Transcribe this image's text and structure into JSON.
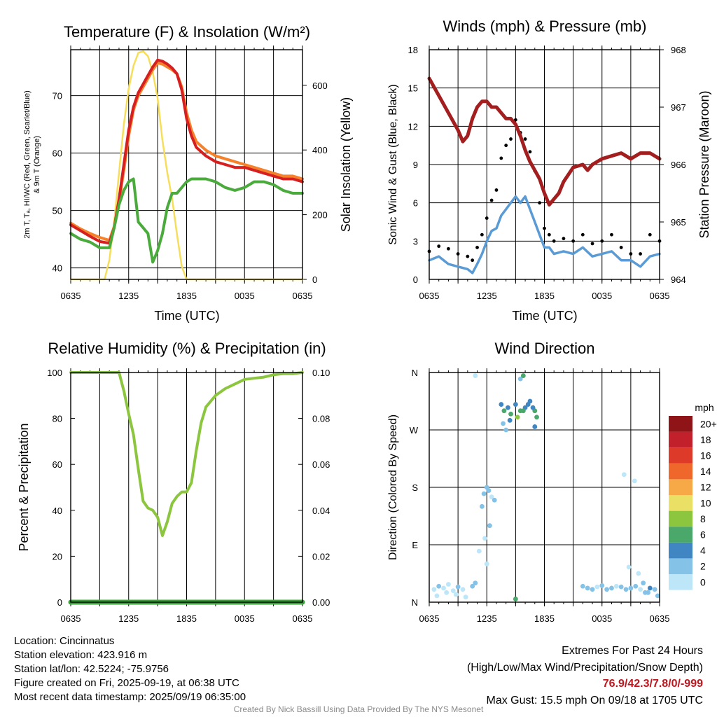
{
  "charts": {
    "temperature": {
      "title": "Temperature (F) & Insolation (W/m²)",
      "ylabel_left_lines": [
        "2m T, Tₐ, HI/WC (Red, Green, Scarlet/Blue)",
        "& 9m T (Orange)"
      ],
      "ylabel_right": "Solar Insolation (Yellow)",
      "xlabel": "Time (UTC)"
    },
    "winds": {
      "title": "Winds (mph) & Pressure (mb)",
      "ylabel_left": "Sonic Wind & Gust (Blue, Black)",
      "ylabel_right": "Station Pressure (Maroon)",
      "xlabel": "Time (UTC)"
    },
    "humidity": {
      "title": "Relative Humidity (%) & Precipitation (in)",
      "ylabel_left": "Percent & Precipitation"
    },
    "direction": {
      "title": "Wind Direction",
      "ylabel_left": "Direction (Colored By Speed)",
      "colorbar_title": "mph"
    }
  },
  "chart_data": [
    {
      "type": "line",
      "title": "Temperature (F) & Insolation (W/m2)",
      "xlabel": "Time (UTC)",
      "xticks": [
        "0635",
        "1235",
        "1835",
        "0035",
        "0635"
      ],
      "xlim_hours": [
        0,
        24
      ],
      "ylim_left": [
        38,
        78
      ],
      "yticks_left": [
        40,
        50,
        60,
        70
      ],
      "ylim_right": [
        0,
        710
      ],
      "yticks_right": [
        0,
        200,
        400,
        600
      ],
      "series": [
        {
          "name": "2m T",
          "color": "#d62020",
          "axis": "left",
          "x": [
            0,
            1,
            2,
            3,
            4,
            4.5,
            5,
            5.5,
            6,
            6.5,
            7,
            7.5,
            8,
            8.5,
            9,
            9.5,
            10,
            10.5,
            11,
            11.5,
            12,
            12.5,
            13,
            14,
            15,
            16,
            17,
            18,
            19,
            20,
            21,
            22,
            23,
            24
          ],
          "y": [
            47.5,
            46.5,
            45.5,
            44.6,
            44.3,
            47,
            52,
            58,
            64,
            68,
            70.5,
            72,
            73.5,
            75,
            76.2,
            76,
            75.5,
            74.8,
            73.8,
            71,
            66,
            63,
            61,
            59.5,
            58.5,
            58,
            57.5,
            57.5,
            57,
            56.5,
            56,
            55.5,
            55.5,
            55
          ]
        },
        {
          "name": "9m T",
          "color": "#f5822a",
          "axis": "left",
          "x": [
            0,
            1,
            2,
            3,
            4,
            4.5,
            5,
            5.5,
            6,
            6.5,
            7,
            7.5,
            8,
            8.5,
            9,
            9.5,
            10,
            10.5,
            11,
            11.5,
            12,
            12.5,
            13,
            14,
            15,
            16,
            17,
            18,
            19,
            20,
            21,
            22,
            23,
            24
          ],
          "y": [
            47.8,
            46.8,
            46,
            45.3,
            44.8,
            47.2,
            51.5,
            57,
            63,
            67.5,
            70,
            71.5,
            73,
            74.5,
            75.7,
            75.5,
            75,
            74.5,
            73.8,
            71.5,
            67,
            64,
            62,
            60.5,
            59.5,
            59,
            58.5,
            58,
            57.5,
            57,
            56.5,
            56,
            56,
            55.5
          ]
        },
        {
          "name": "T dewpoint",
          "color": "#4aab3c",
          "axis": "left",
          "x": [
            0,
            1,
            2,
            3,
            4,
            4.5,
            5,
            5.5,
            6,
            6.5,
            7,
            7.5,
            8,
            8.5,
            9,
            9.5,
            10,
            10.5,
            11,
            11.5,
            12,
            12.5,
            13,
            14,
            15,
            16,
            17,
            18,
            19,
            20,
            21,
            22,
            23,
            24
          ],
          "y": [
            46,
            45,
            44.5,
            43.5,
            43.5,
            47,
            51,
            53.5,
            55,
            55.5,
            48,
            47,
            46,
            41,
            43,
            46,
            50.5,
            53,
            53,
            54,
            55,
            55.5,
            55.5,
            55.5,
            55,
            54,
            53.5,
            54,
            55,
            55,
            54.5,
            53.5,
            53,
            53
          ]
        },
        {
          "name": "Solar insolation",
          "color": "#f7de5a",
          "axis": "right",
          "x": [
            0,
            2,
            3.5,
            4,
            4.5,
            5,
            5.5,
            6,
            6.5,
            7,
            7.5,
            8,
            8.5,
            9,
            9.5,
            10,
            10.5,
            11,
            11.5,
            12,
            12.5,
            13,
            24
          ],
          "y": [
            0,
            0,
            0,
            60,
            180,
            330,
            480,
            590,
            660,
            700,
            705,
            690,
            640,
            560,
            430,
            330,
            250,
            140,
            40,
            0,
            0,
            0,
            0
          ]
        }
      ]
    },
    {
      "type": "line",
      "title": "Winds (mph) & Pressure (mb)",
      "xlabel": "Time (UTC)",
      "xticks": [
        "0635",
        "1235",
        "1835",
        "0035",
        "0635"
      ],
      "xlim_hours": [
        0,
        24
      ],
      "ylim_left": [
        0,
        18
      ],
      "yticks_left": [
        0,
        3,
        6,
        9,
        12,
        15,
        18
      ],
      "ylim_right": [
        964,
        968
      ],
      "yticks_right": [
        964,
        965,
        966,
        967,
        968
      ],
      "series": [
        {
          "name": "Sonic wind",
          "color": "#5b9bd5",
          "axis": "left",
          "x": [
            0,
            1,
            2,
            3,
            4,
            4.5,
            5,
            5.5,
            6,
            6.5,
            7,
            7.5,
            8,
            8.5,
            9,
            9.5,
            10,
            10.5,
            11,
            11.5,
            12,
            12.5,
            13,
            14,
            15,
            16,
            17,
            18,
            19,
            20,
            21,
            22,
            23,
            24
          ],
          "y": [
            1.5,
            1.8,
            1.2,
            1.0,
            0.8,
            0.5,
            1.2,
            2.0,
            3.0,
            3.8,
            4.0,
            5.0,
            5.5,
            6.0,
            6.5,
            6.0,
            6.5,
            5.5,
            4.5,
            3.5,
            2.5,
            2.5,
            2.0,
            2.2,
            2.0,
            2.5,
            1.8,
            2.0,
            2.2,
            1.5,
            1.5,
            1.0,
            1.8,
            2.0
          ]
        },
        {
          "name": "Gust",
          "color": "#000000",
          "axis": "left",
          "x": [
            0,
            1,
            2,
            3,
            4,
            4.5,
            5,
            5.5,
            6,
            6.5,
            7,
            7.5,
            8,
            8.5,
            9,
            9.5,
            10,
            10.5,
            11,
            11.5,
            12,
            12.5,
            13,
            14,
            15,
            16,
            17,
            18,
            19,
            20,
            21,
            22,
            23,
            24
          ],
          "y": [
            2.2,
            2.6,
            2.4,
            2.0,
            1.8,
            1.5,
            2.5,
            3.5,
            4.8,
            6.2,
            7.0,
            9.5,
            10.5,
            11.0,
            12.5,
            11.5,
            11.0,
            10.0,
            8.5,
            6.0,
            4.0,
            3.5,
            3.0,
            3.2,
            3.0,
            3.5,
            2.8,
            3.0,
            3.5,
            2.5,
            2.0,
            2.0,
            3.5,
            3.0
          ]
        },
        {
          "name": "Station pressure",
          "color": "#a31e1e",
          "axis": "right",
          "x": [
            0,
            0.5,
            1,
            2,
            3,
            3.5,
            4,
            4.5,
            5,
            5.5,
            6,
            6.5,
            7,
            7.5,
            8,
            8.5,
            9,
            9.5,
            10,
            10.5,
            11,
            11.5,
            12,
            12.5,
            13,
            13.5,
            14,
            15,
            16,
            16.5,
            17,
            18,
            19,
            20,
            21,
            22,
            23,
            24
          ],
          "y": [
            967.5,
            967.35,
            967.2,
            966.9,
            966.6,
            966.4,
            966.5,
            966.8,
            967.0,
            967.1,
            967.1,
            967.0,
            967.0,
            966.9,
            966.8,
            966.8,
            966.7,
            966.5,
            966.25,
            966.05,
            965.9,
            965.75,
            965.5,
            965.3,
            965.4,
            965.5,
            965.7,
            965.95,
            966.0,
            965.9,
            966.0,
            966.1,
            966.15,
            966.2,
            966.1,
            966.2,
            966.2,
            966.1
          ]
        }
      ]
    },
    {
      "type": "line",
      "title": "Relative Humidity (%) & Precipitation (in)",
      "xticks": [
        "0635",
        "1235",
        "1835",
        "0035",
        "0635"
      ],
      "xlim_hours": [
        0,
        24
      ],
      "ylim_left": [
        0,
        100
      ],
      "yticks_left": [
        0,
        20,
        40,
        60,
        80,
        100
      ],
      "ylim_right": [
        0,
        0.1
      ],
      "yticks_right": [
        "0.00",
        "0.02",
        "0.04",
        "0.06",
        "0.08",
        "0.10"
      ],
      "series": [
        {
          "name": "Relative humidity",
          "color": "#8cc63f",
          "axis": "left",
          "x": [
            0,
            2,
            4,
            5,
            5.5,
            6,
            6.5,
            7,
            7.5,
            8,
            8.5,
            9,
            9.5,
            10,
            10.5,
            11,
            11.5,
            12,
            12.5,
            13,
            13.5,
            14,
            15,
            16,
            17,
            18,
            19,
            20,
            21,
            22,
            23,
            24
          ],
          "y": [
            100,
            100,
            100,
            100,
            92,
            82,
            73,
            58,
            44,
            41,
            40,
            37,
            29,
            35,
            43,
            46,
            48,
            48,
            52,
            66,
            78,
            85,
            90,
            93,
            95,
            97,
            97.5,
            98,
            99,
            99.5,
            99.5,
            100
          ]
        },
        {
          "name": "Precipitation",
          "color": "#3aa03a",
          "axis": "right",
          "x": [
            0,
            24
          ],
          "y": [
            0,
            0
          ]
        }
      ]
    },
    {
      "type": "scatter",
      "title": "Wind Direction",
      "xticks": [
        "0635",
        "1235",
        "1835",
        "0035",
        "0635"
      ],
      "xlim_hours": [
        0,
        24
      ],
      "yticks": [
        "N",
        "E",
        "S",
        "W",
        "N"
      ],
      "ylim_degrees": [
        0,
        360
      ],
      "colorbar": {
        "title": "mph",
        "labels": [
          "0",
          "2",
          "4",
          "6",
          "8",
          "10",
          "12",
          "14",
          "16",
          "18",
          "20+"
        ],
        "colors": [
          "#bde6f8",
          "#84c2e8",
          "#3f86c2",
          "#4aa86a",
          "#8cc63f",
          "#ebe066",
          "#f7a947",
          "#f0672b",
          "#dd3a2a",
          "#c2202a",
          "#8f1418"
        ]
      },
      "points_time_hours": [
        0.5,
        1,
        1.5,
        2,
        2.5,
        3,
        3.5,
        0.8,
        1.8,
        2.8,
        3.8,
        4.5,
        4.8,
        5.5,
        5.7,
        6,
        6.2,
        6.5,
        6.8,
        5.8,
        6.3,
        5.2,
        6.0,
        7.5,
        7.8,
        8.2,
        8.5,
        9,
        9.5,
        10,
        10.5,
        11,
        11.2,
        7.7,
        8.4,
        9.2,
        9.8,
        10.3,
        10.8,
        8.0,
        11.0,
        9.5,
        16,
        16.5,
        17,
        17.5,
        18,
        18.5,
        19,
        19.5,
        20,
        20.5,
        21,
        21.5,
        22,
        22.5,
        23,
        23.5,
        20.8,
        21.8,
        22.3,
        22.8,
        23.8,
        21.4,
        20.3,
        9.8,
        4.8,
        9.0
      ],
      "points_direction_degrees": [
        20,
        25,
        22,
        28,
        18,
        24,
        20,
        10,
        15,
        12,
        8,
        25,
        30,
        150,
        170,
        180,
        175,
        165,
        160,
        100,
        120,
        80,
        60,
        310,
        300,
        305,
        295,
        310,
        300,
        305,
        315,
        300,
        290,
        280,
        285,
        290,
        300,
        310,
        305,
        270,
        275,
        350,
        25,
        22,
        20,
        24,
        26,
        20,
        22,
        25,
        24,
        20,
        22,
        25,
        20,
        15,
        22,
        20,
        55,
        45,
        30,
        15,
        10,
        190,
        200,
        355,
        355,
        5
      ],
      "points_speed_mph": [
        1,
        2,
        1,
        0,
        1,
        2,
        1,
        0,
        1,
        0,
        1,
        2,
        2,
        3,
        2,
        3,
        2,
        1,
        2,
        1,
        2,
        0,
        1,
        5,
        6,
        4,
        7,
        5,
        6,
        5,
        4,
        6,
        7,
        3,
        5,
        8,
        6,
        4,
        5,
        2,
        4,
        3,
        2,
        3,
        2,
        1,
        2,
        3,
        2,
        1,
        2,
        3,
        2,
        2,
        1,
        2,
        4,
        3,
        1,
        1,
        2,
        3,
        2,
        1,
        1,
        7,
        1,
        6
      ]
    }
  ],
  "metadata": {
    "location": "Location: Cincinnatus",
    "elevation": "Station elevation: 423.916 m",
    "latlon": "Station lat/lon: 42.5224; -75.9756",
    "created": "Figure created on Fri, 2025-09-19, at 06:38 UTC",
    "recent": "Most recent data timestamp: 2025/09/19 06:35:00"
  },
  "extremes": {
    "title": "Extremes For Past 24 Hours",
    "subtitle": "(High/Low/Max Wind/Precipitation/Snow Depth)",
    "values": "76.9/42.3/7.8/0/-999",
    "max_gust": "Max Gust: 15.5 mph On 09/18 at 1705 UTC"
  },
  "credit": "Created By Nick Bassill Using Data Provided By The NYS Mesonet"
}
